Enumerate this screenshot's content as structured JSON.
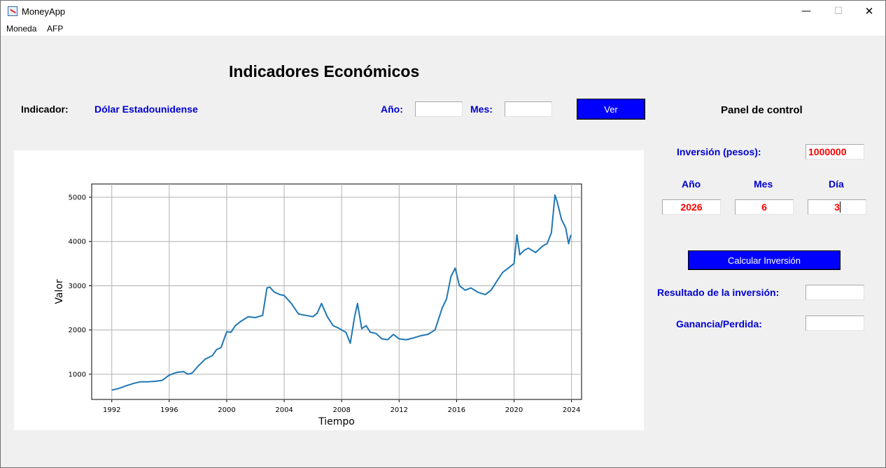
{
  "window": {
    "title": "MoneyApp"
  },
  "titlebar": {
    "minimize": "—",
    "maximize": "☐",
    "close": "✕"
  },
  "menu": {
    "items": [
      "Moneda",
      "AFP"
    ]
  },
  "main": {
    "title": "Indicadores Económicos",
    "indicator_label": "Indicador:",
    "indicator_value": "Dólar Estadounidense",
    "year_label": "Año:",
    "year_value": "",
    "month_label": "Mes:",
    "month_value": "",
    "view_button": "Ver"
  },
  "panel": {
    "title": "Panel de control",
    "investment_label": "Inversión (pesos):",
    "investment_value": "1000000",
    "year_label": "Año",
    "month_label": "Mes",
    "day_label": "Día",
    "year_value": "2026",
    "month_value": "6",
    "day_value": "3",
    "calculate_button": "Calcular Inversión",
    "result_label": "Resultado de la inversión:",
    "result_value": "",
    "gain_label": "Ganancia/Perdida:",
    "gain_value": ""
  },
  "colors": {
    "accent_blue": "#0000ff",
    "label_blue": "#0000d0",
    "value_red": "#ff0000",
    "series_color": "#1f77b4"
  },
  "chart_data": {
    "type": "line",
    "title": "",
    "xlabel": "Tiempo",
    "ylabel": "Valor",
    "xlim": [
      1990.6,
      2024.7
    ],
    "ylim": [
      430,
      5300
    ],
    "xticks": [
      1992,
      1996,
      2000,
      2004,
      2008,
      2012,
      2016,
      2020,
      2024
    ],
    "yticks": [
      1000,
      2000,
      3000,
      4000,
      5000
    ],
    "grid": true,
    "series": [
      {
        "x": [
          1992.0,
          1992.5,
          1993.0,
          1993.5,
          1994.0,
          1994.5,
          1995.0,
          1995.5,
          1996.0,
          1996.5,
          1997.0,
          1997.3,
          1997.6,
          1998.0,
          1998.5,
          1999.0,
          1999.3,
          1999.6,
          2000.0,
          2000.3,
          2000.6,
          2001.0,
          2001.5,
          2002.0,
          2002.5,
          2002.8,
          2003.0,
          2003.3,
          2003.7,
          2004.0,
          2004.5,
          2005.0,
          2005.5,
          2006.0,
          2006.3,
          2006.6,
          2007.0,
          2007.4,
          2007.8,
          2008.0,
          2008.3,
          2008.6,
          2008.9,
          2009.1,
          2009.4,
          2009.7,
          2010.0,
          2010.4,
          2010.8,
          2011.2,
          2011.6,
          2012.0,
          2012.5,
          2013.0,
          2013.5,
          2014.0,
          2014.5,
          2015.0,
          2015.3,
          2015.6,
          2015.9,
          2016.2,
          2016.6,
          2017.0,
          2017.5,
          2018.0,
          2018.4,
          2018.8,
          2019.2,
          2019.6,
          2020.0,
          2020.2,
          2020.4,
          2020.7,
          2021.0,
          2021.5,
          2022.0,
          2022.3,
          2022.6,
          2022.85,
          2023.0,
          2023.3,
          2023.6,
          2023.8,
          2023.95
        ],
        "y": [
          640,
          680,
          740,
          790,
          830,
          830,
          840,
          860,
          980,
          1040,
          1060,
          1000,
          1030,
          1180,
          1340,
          1420,
          1560,
          1600,
          1960,
          1950,
          2100,
          2200,
          2300,
          2280,
          2330,
          2950,
          2970,
          2860,
          2800,
          2780,
          2600,
          2360,
          2330,
          2300,
          2380,
          2600,
          2300,
          2100,
          2040,
          2000,
          1950,
          1700,
          2300,
          2600,
          2030,
          2100,
          1950,
          1920,
          1800,
          1780,
          1900,
          1800,
          1780,
          1820,
          1870,
          1900,
          2000,
          2500,
          2700,
          3200,
          3400,
          3000,
          2900,
          2950,
          2850,
          2800,
          2900,
          3100,
          3300,
          3400,
          3500,
          4150,
          3700,
          3800,
          3850,
          3750,
          3900,
          3950,
          4200,
          5050,
          4900,
          4500,
          4300,
          3950,
          4150
        ]
      }
    ]
  }
}
